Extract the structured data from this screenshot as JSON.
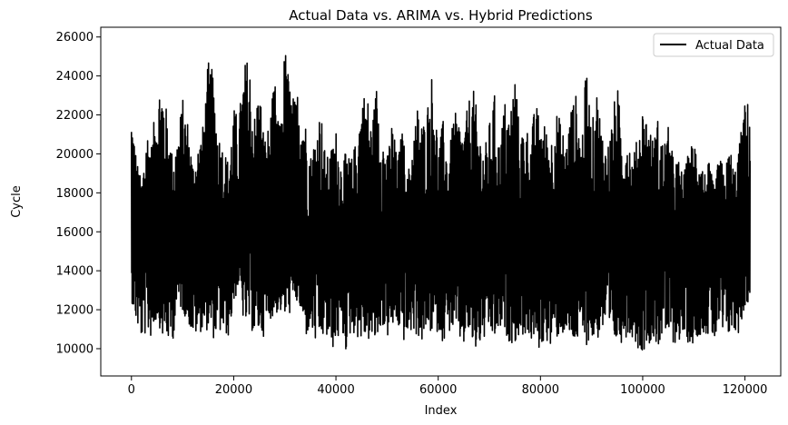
{
  "chart_data": {
    "type": "line",
    "title": "Actual Data vs. ARIMA vs. Hybrid Predictions",
    "xlabel": "Index",
    "ylabel": "Cycle",
    "xlim": [
      -6000,
      127000
    ],
    "ylim": [
      8600,
      26500
    ],
    "x_ticks": [
      0,
      20000,
      40000,
      60000,
      80000,
      100000,
      120000
    ],
    "x_tick_labels": [
      "0",
      "20000",
      "40000",
      "60000",
      "80000",
      "100000",
      "120000"
    ],
    "y_ticks": [
      10000,
      12000,
      14000,
      16000,
      18000,
      20000,
      22000,
      24000,
      26000
    ],
    "y_tick_labels": [
      "10000",
      "12000",
      "14000",
      "16000",
      "18000",
      "20000",
      "22000",
      "24000",
      "26000"
    ],
    "grid": false,
    "legend": {
      "position": "top-right",
      "entries": [
        "Actual Data"
      ]
    },
    "series": [
      {
        "name": "Actual Data",
        "color": "#000000",
        "x_range": [
          0,
          121000
        ],
        "approx_envelope": {
          "x": [
            0,
            1000,
            2000,
            3000,
            4000,
            5000,
            6000,
            7000,
            8000,
            9000,
            10000,
            11000,
            12000,
            13000,
            14000,
            15000,
            16000,
            17000,
            18000,
            19000,
            20000,
            21000,
            22000,
            23000,
            24000,
            25000,
            26000,
            27000,
            28000,
            29000,
            30000,
            31000,
            32000,
            33000,
            34000,
            35000,
            36000,
            37000,
            38000,
            39000,
            40000,
            41000,
            42000,
            43000,
            44000,
            45000,
            46000,
            47000,
            48000,
            49000,
            50000,
            51000,
            52000,
            53000,
            54000,
            55000,
            56000,
            57000,
            58000,
            59000,
            60000,
            61000,
            62000,
            63000,
            64000,
            65000,
            66000,
            67000,
            68000,
            69000,
            70000,
            71000,
            72000,
            73000,
            74000,
            75000,
            76000,
            77000,
            78000,
            79000,
            80000,
            81000,
            82000,
            83000,
            84000,
            85000,
            86000,
            87000,
            88000,
            89000,
            90000,
            91000,
            92000,
            93000,
            94000,
            95000,
            96000,
            97000,
            98000,
            99000,
            100000,
            101000,
            102000,
            103000,
            104000,
            105000,
            106000,
            107000,
            108000,
            109000,
            110000,
            111000,
            112000,
            113000,
            114000,
            115000,
            116000,
            117000,
            118000,
            119000,
            120000,
            121000
          ],
          "high": [
            22600,
            19800,
            18500,
            21500,
            20500,
            23500,
            24000,
            22000,
            20000,
            21000,
            22900,
            21800,
            19600,
            20500,
            21500,
            24800,
            24200,
            21200,
            20400,
            19600,
            22400,
            21900,
            24600,
            25200,
            21900,
            23800,
            20800,
            21600,
            23900,
            21100,
            25700,
            23700,
            22700,
            24100,
            21800,
            19900,
            21100,
            22500,
            19700,
            20200,
            21300,
            19600,
            20100,
            19700,
            20800,
            23000,
            23400,
            21400,
            23800,
            21300,
            19800,
            21900,
            19600,
            21400,
            18800,
            20800,
            22600,
            21500,
            22800,
            24600,
            20300,
            21800,
            19500,
            22200,
            21900,
            21100,
            22900,
            23300,
            21300,
            20100,
            21600,
            23100,
            20500,
            22800,
            22000,
            24500,
            20800,
            21900,
            20600,
            22700,
            21800,
            21500,
            20600,
            22300,
            21700,
            20500,
            22500,
            23100,
            20500,
            24700,
            21300,
            23400,
            21400,
            20200,
            21800,
            23800,
            20700,
            21300,
            19800,
            20900,
            22500,
            21900,
            20700,
            21900,
            20500,
            21400,
            19800,
            19700,
            18900,
            20200,
            20800,
            20600,
            19000,
            19600,
            18200,
            20100,
            19000,
            20500,
            19100,
            20700,
            22700,
            22700
          ],
          "low": [
            12500,
            11200,
            10400,
            10800,
            10500,
            11600,
            10600,
            10400,
            10200,
            12300,
            11900,
            11400,
            10600,
            10700,
            11000,
            10900,
            10500,
            10800,
            10700,
            10600,
            12200,
            13300,
            11200,
            11300,
            10600,
            10800,
            10600,
            11500,
            11700,
            11900,
            11600,
            11800,
            12500,
            11900,
            10500,
            11000,
            10200,
            10400,
            10600,
            9900,
            10100,
            10900,
            9800,
            10900,
            10600,
            10400,
            10500,
            10200,
            10300,
            11300,
            10500,
            11000,
            11200,
            10300,
            10500,
            10900,
            10600,
            10200,
            11000,
            10600,
            10900,
            10300,
            10800,
            11000,
            10400,
            10100,
            10800,
            9700,
            10100,
            10400,
            10800,
            10400,
            10900,
            10800,
            10300,
            10300,
            10600,
            10700,
            10400,
            10200,
            9800,
            10600,
            9900,
            10400,
            10800,
            10500,
            10400,
            10200,
            10500,
            10200,
            10400,
            10300,
            11000,
            10500,
            10200,
            10300,
            10300,
            10700,
            10600,
            10000,
            9800,
            10300,
            10300,
            10100,
            10600,
            10600,
            10200,
            10400,
            10400,
            10300,
            10200,
            10700,
            10800,
            10600,
            10300,
            10900,
            10300,
            10700,
            10700,
            10800,
            12200,
            12300
          ],
          "mean": 15500
        }
      }
    ]
  }
}
